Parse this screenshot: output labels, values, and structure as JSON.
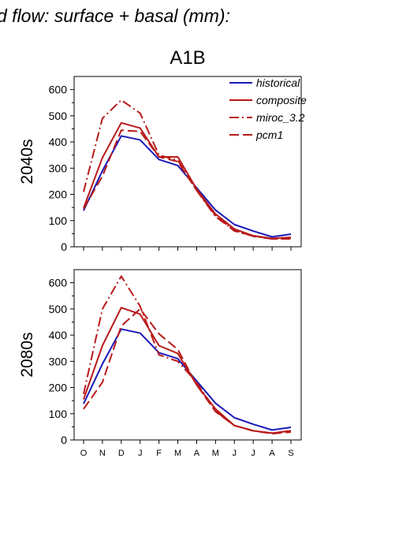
{
  "figure": {
    "title": "d flow: surface + basal (mm):",
    "scenario": "A1B"
  },
  "chart_data": [
    {
      "type": "line",
      "row_label": "2040s",
      "categories": [
        "O",
        "N",
        "D",
        "J",
        "F",
        "M",
        "A",
        "M",
        "J",
        "J",
        "A",
        "S"
      ],
      "ylim": [
        0,
        650
      ],
      "yticks": [
        0,
        100,
        200,
        300,
        400,
        500,
        600
      ],
      "legend": {
        "placement": "top-right"
      },
      "series": [
        {
          "name": "historical",
          "color": "#1a1ab8",
          "dash": "solid",
          "values": [
            138,
            290,
            423,
            408,
            333,
            310,
            225,
            140,
            85,
            60,
            38,
            48
          ]
        },
        {
          "name": "composite",
          "color": "#b81a1a",
          "dash": "solid",
          "values": [
            148,
            340,
            473,
            453,
            343,
            343,
            220,
            125,
            68,
            42,
            32,
            36
          ]
        },
        {
          "name": "miroc_3.2",
          "color": "#b81a1a",
          "dash": "dashdot",
          "values": [
            210,
            490,
            560,
            510,
            350,
            330,
            215,
            115,
            62,
            40,
            30,
            32
          ]
        },
        {
          "name": "pcm1",
          "color": "#b81a1a",
          "dash": "dashed",
          "values": [
            145,
            270,
            445,
            440,
            343,
            325,
            215,
            120,
            60,
            42,
            30,
            30
          ]
        }
      ]
    },
    {
      "type": "line",
      "row_label": "2080s",
      "categories": [
        "O",
        "N",
        "D",
        "J",
        "F",
        "M",
        "A",
        "M",
        "J",
        "J",
        "A",
        "S"
      ],
      "ylim": [
        0,
        650
      ],
      "yticks": [
        0,
        100,
        200,
        300,
        400,
        500,
        600
      ],
      "series": [
        {
          "name": "historical",
          "color": "#1a1ab8",
          "dash": "solid",
          "values": [
            138,
            290,
            423,
            408,
            333,
            310,
            225,
            140,
            85,
            60,
            38,
            48
          ]
        },
        {
          "name": "composite",
          "color": "#b81a1a",
          "dash": "solid",
          "values": [
            155,
            360,
            505,
            480,
            360,
            330,
            210,
            118,
            55,
            35,
            26,
            35
          ]
        },
        {
          "name": "miroc_3.2",
          "color": "#b81a1a",
          "dash": "dashdot",
          "values": [
            175,
            500,
            625,
            510,
            325,
            300,
            220,
            110,
            55,
            35,
            26,
            35
          ]
        },
        {
          "name": "pcm1",
          "color": "#b81a1a",
          "dash": "dashed",
          "values": [
            118,
            220,
            435,
            500,
            405,
            345,
            210,
            108,
            55,
            35,
            24,
            30
          ]
        }
      ]
    }
  ]
}
